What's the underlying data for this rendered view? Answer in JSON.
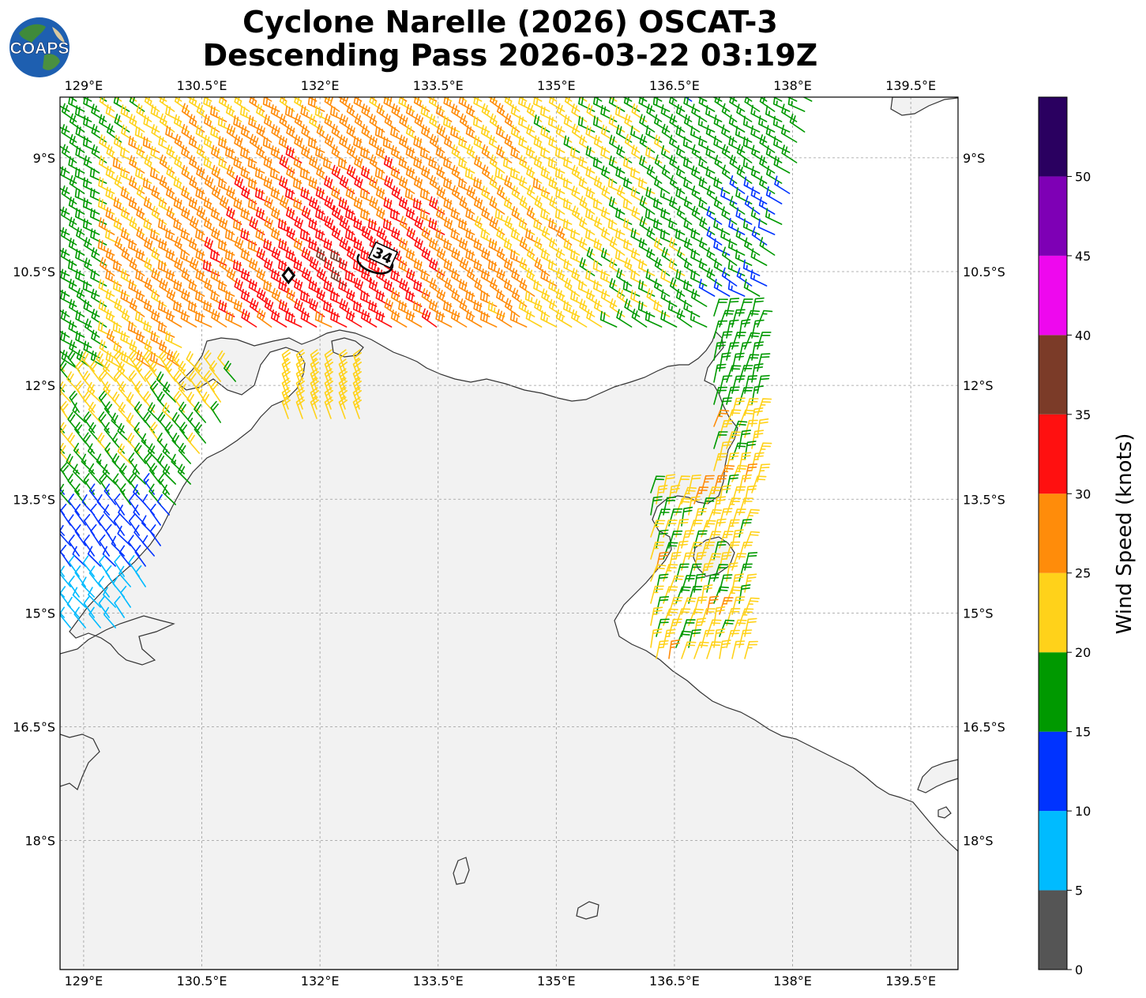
{
  "title_line1": "Cyclone Narelle (2026) OSCAT-3",
  "title_line2": "Descending Pass 2026-03-22 03:19Z",
  "logo_text": "COAPS",
  "map": {
    "lon_range": [
      128.7,
      140.1
    ],
    "lat_range": [
      -19.7,
      -8.2
    ],
    "lon_ticks": [
      {
        "value": 129.0,
        "label": "129°E"
      },
      {
        "value": 130.5,
        "label": "130.5°E"
      },
      {
        "value": 132.0,
        "label": "132°E"
      },
      {
        "value": 133.5,
        "label": "133.5°E"
      },
      {
        "value": 135.0,
        "label": "135°E"
      },
      {
        "value": 136.5,
        "label": "136.5°E"
      },
      {
        "value": 138.0,
        "label": "138°E"
      },
      {
        "value": 139.5,
        "label": "139.5°E"
      }
    ],
    "lat_ticks": [
      {
        "value": -9.0,
        "label": "9°S"
      },
      {
        "value": -10.5,
        "label": "10.5°S"
      },
      {
        "value": -12.0,
        "label": "12°S"
      },
      {
        "value": -13.5,
        "label": "13.5°S"
      },
      {
        "value": -15.0,
        "label": "15°S"
      },
      {
        "value": -16.5,
        "label": "16.5°S"
      },
      {
        "value": -18.0,
        "label": "18°S"
      }
    ],
    "radius_label": "34",
    "storm_center": {
      "lon": 131.6,
      "lat": -10.55
    }
  },
  "colorbar": {
    "label": "Wind Speed (knots)",
    "ticks": [
      "0",
      "5",
      "10",
      "15",
      "20",
      "25",
      "30",
      "35",
      "40",
      "45",
      "50"
    ],
    "bins": [
      {
        "min": 0,
        "max": 5,
        "color": "#555555"
      },
      {
        "min": 5,
        "max": 10,
        "color": "#00bbff"
      },
      {
        "min": 10,
        "max": 15,
        "color": "#0033ff"
      },
      {
        "min": 15,
        "max": 20,
        "color": "#009900"
      },
      {
        "min": 20,
        "max": 25,
        "color": "#ffd21a"
      },
      {
        "min": 25,
        "max": 30,
        "color": "#ff8c0a"
      },
      {
        "min": 30,
        "max": 35,
        "color": "#ff1010"
      },
      {
        "min": 35,
        "max": 40,
        "color": "#7b3b28"
      },
      {
        "min": 40,
        "max": 45,
        "color": "#ee08ee"
      },
      {
        "min": 45,
        "max": 50,
        "color": "#7e00b5"
      },
      {
        "min": 50,
        "max": 55,
        "color": "#2a0060"
      }
    ]
  },
  "colors": {
    "land": "#f2f2f2",
    "coast": "#333333",
    "grid": "#9a9a9a",
    "radius_ring": "#000000"
  }
}
